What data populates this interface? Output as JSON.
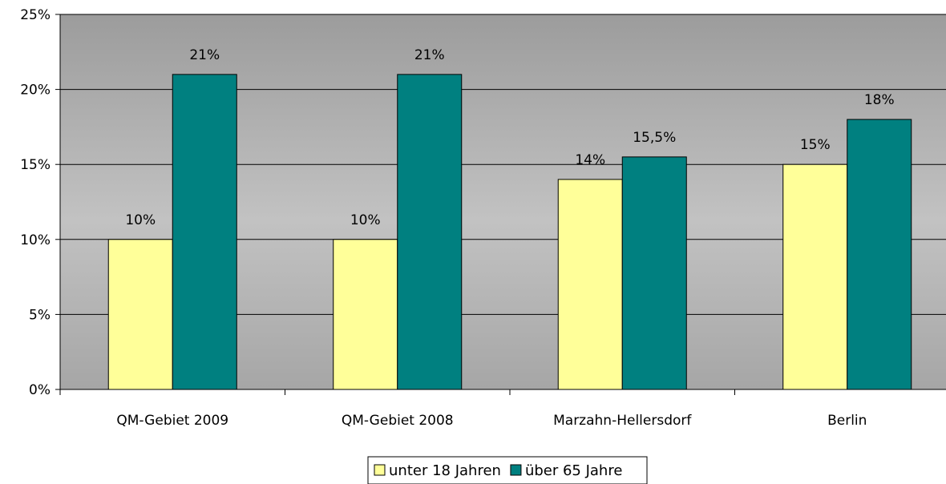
{
  "chart_data": {
    "type": "bar",
    "categories": [
      "QM-Gebiet 2009",
      "QM-Gebiet 2008",
      "Marzahn-Hellersdorf",
      "Berlin"
    ],
    "series": [
      {
        "name": "unter 18 Jahren",
        "values": [
          10,
          10,
          14,
          15
        ],
        "labels": [
          "10%",
          "10%",
          "14%",
          "15%"
        ],
        "color": "#ffff99"
      },
      {
        "name": "über 65 Jahre",
        "values": [
          21,
          21,
          15.5,
          18
        ],
        "labels": [
          "21%",
          "21%",
          "15,5%",
          "18%"
        ],
        "color": "#008080"
      }
    ],
    "ylim": [
      0,
      25
    ],
    "yticks": [
      0,
      5,
      10,
      15,
      20,
      25
    ],
    "ytick_labels": [
      "0%",
      "5%",
      "10%",
      "15%",
      "20%",
      "25%"
    ],
    "grid": true,
    "legend_position": "bottom",
    "plot_background": "gradient gray (dark top, light bottom)"
  }
}
